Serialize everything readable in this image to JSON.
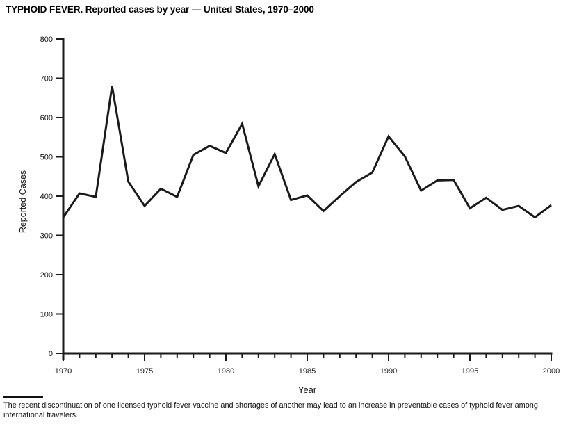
{
  "page": {
    "title": "TYPHOID FEVER. Reported cases by year — United States, 1970–2000",
    "footnote": "The recent discontinuation of one licensed typhoid fever vaccine and shortages of another may lead to an increase in preventable cases of typhoid fever among international travelers."
  },
  "chart_data": {
    "type": "line",
    "title": "TYPHOID FEVER. Reported cases by year — United States, 1970–2000",
    "xlabel": "Year",
    "ylabel": "Reported Cases",
    "x": [
      1970,
      1971,
      1972,
      1973,
      1974,
      1975,
      1976,
      1977,
      1978,
      1979,
      1980,
      1981,
      1982,
      1983,
      1984,
      1985,
      1986,
      1987,
      1988,
      1989,
      1990,
      1991,
      1992,
      1993,
      1994,
      1995,
      1996,
      1997,
      1998,
      1999,
      2000
    ],
    "series": [
      {
        "name": "Reported Cases",
        "values": [
          346,
          407,
          398,
          680,
          437,
          375,
          419,
          398,
          505,
          528,
          510,
          584,
          425,
          507,
          390,
          402,
          362,
          400,
          436,
          460,
          552,
          501,
          414,
          440,
          441,
          369,
          396,
          365,
          375,
          346,
          377
        ]
      }
    ],
    "xlim": [
      1970,
      2000
    ],
    "ylim": [
      0,
      800
    ],
    "ytick_interval": 100,
    "xtick_interval": 1,
    "xlabel_every": 5,
    "grid": false,
    "legend_position": "none",
    "line_color": "#1a1a1a",
    "axis_color": "#1a1a1a",
    "line_width": 3
  }
}
